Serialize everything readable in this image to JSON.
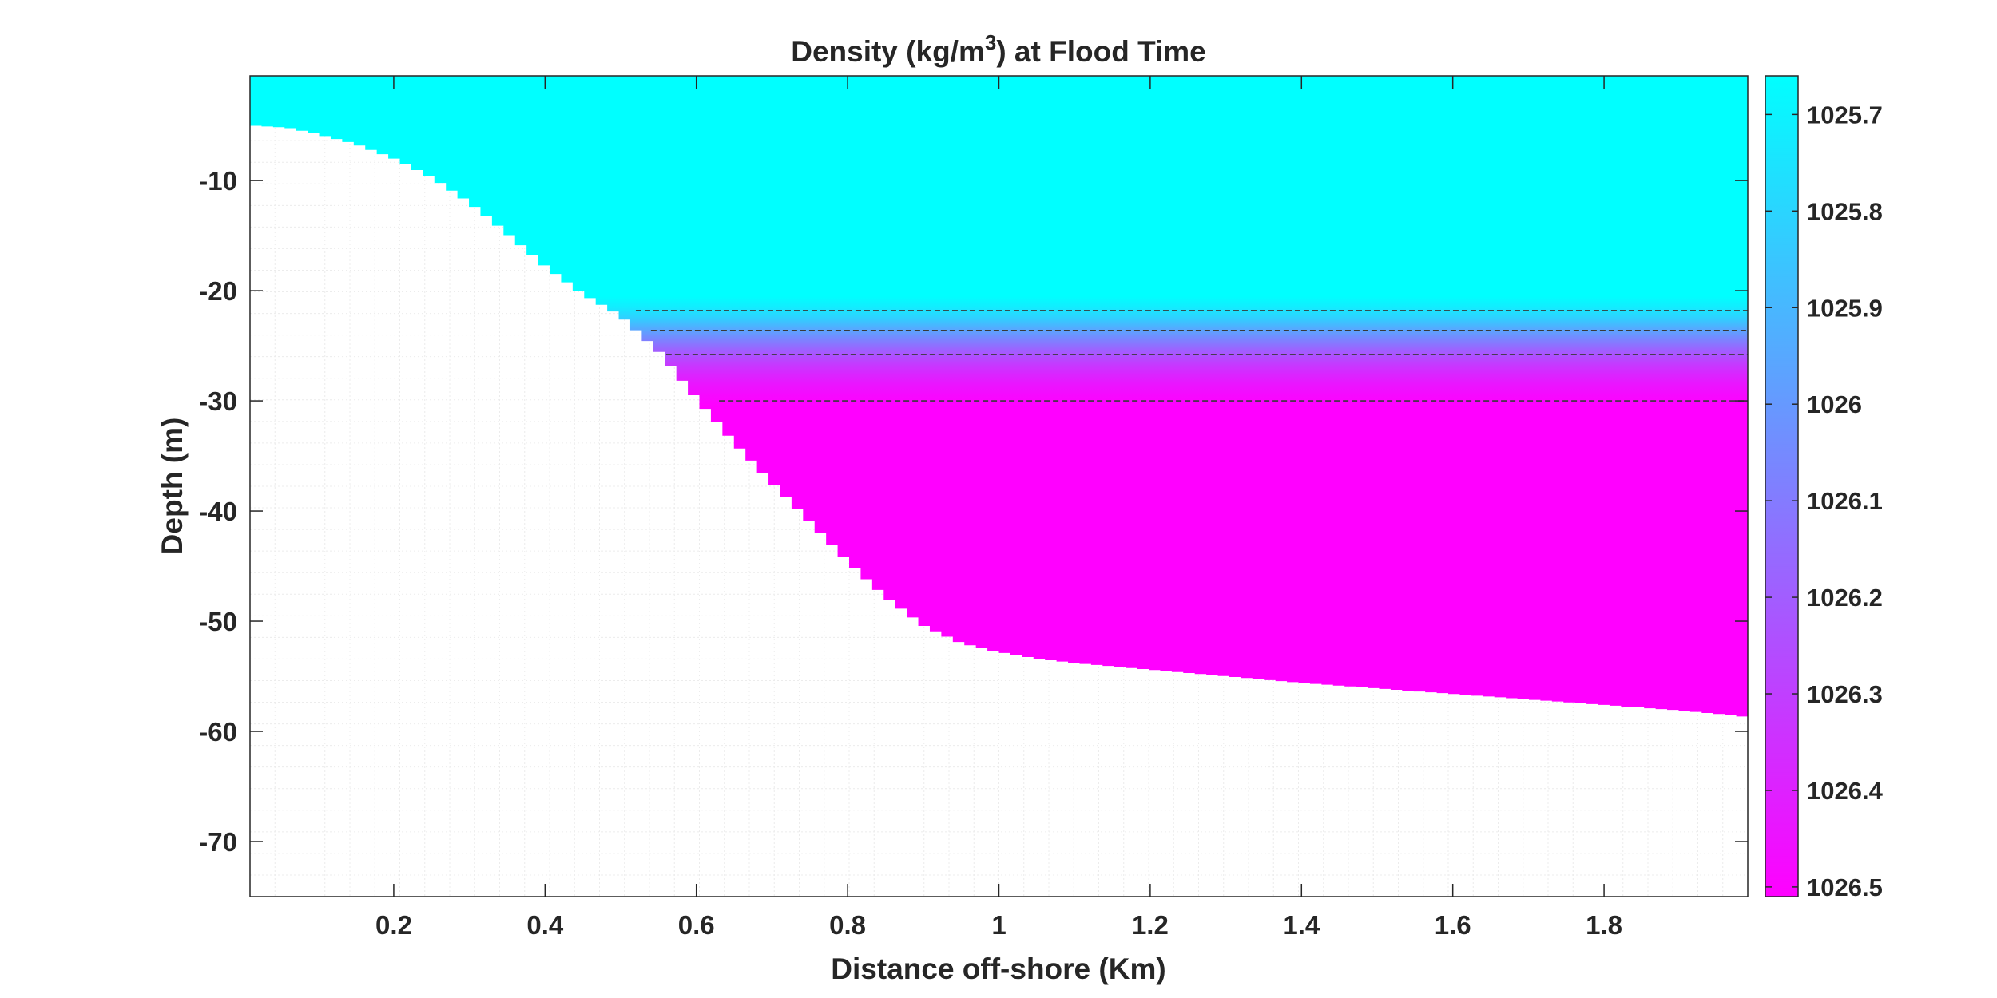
{
  "chart_data": {
    "type": "heatmap",
    "title_main": "Density (kg/m",
    "title_sup": "3",
    "title_tail": ") at Flood Time",
    "xlabel": "Distance off-shore (Km)",
    "ylabel": "Depth (m)",
    "xlim": [
      0.01,
      1.99
    ],
    "ylim": [
      -75,
      -0.5
    ],
    "xticks": [
      0.2,
      0.4,
      0.6,
      0.8,
      1,
      1.2,
      1.4,
      1.6,
      1.8
    ],
    "xtick_labels": [
      "0.2",
      "0.4",
      "0.6",
      "0.8",
      "1",
      "1.2",
      "1.4",
      "1.6",
      "1.8"
    ],
    "yticks": [
      -10,
      -20,
      -30,
      -40,
      -50,
      -60,
      -70
    ],
    "ytick_labels": [
      "-10",
      "-20",
      "-30",
      "-40",
      "-50",
      "-60",
      "-70"
    ],
    "grid": "on",
    "colormap": {
      "low_color": "#00FFFF",
      "high_color": "#FF00FF",
      "direction": "reversed",
      "clim": [
        1025.66,
        1026.51
      ],
      "ticks": [
        1025.7,
        1025.8,
        1025.9,
        1026,
        1026.1,
        1026.2,
        1026.3,
        1026.4,
        1026.5
      ],
      "tick_labels": [
        "1025.7",
        "1025.8",
        "1025.9",
        "1026",
        "1026.1",
        "1026.2",
        "1026.3",
        "1026.4",
        "1026.5"
      ]
    },
    "density_profile": {
      "depth": [
        0,
        -20.5,
        -21.5,
        -22.5,
        -23.5,
        -24.5,
        -25.5,
        -26.5,
        -27.5,
        -28.5,
        -29.5,
        -30.5,
        -80
      ],
      "density": [
        1025.66,
        1025.66,
        1025.72,
        1025.82,
        1025.95,
        1026.08,
        1026.2,
        1026.3,
        1026.38,
        1026.44,
        1026.48,
        1026.51,
        1026.51
      ]
    },
    "contour_depths": [
      -21.8,
      -23.6,
      -25.8,
      -30.0
    ],
    "contour_start_x": [
      0.52,
      0.54,
      0.56,
      0.63
    ],
    "bathymetry": {
      "x": [
        0.01,
        0.06,
        0.1,
        0.15,
        0.2,
        0.25,
        0.3,
        0.35,
        0.4,
        0.45,
        0.5,
        0.55,
        0.6,
        0.65,
        0.7,
        0.75,
        0.8,
        0.85,
        0.9,
        0.95,
        1.0,
        1.05,
        1.1,
        1.2,
        1.3,
        1.4,
        1.5,
        1.6,
        1.7,
        1.8,
        1.9,
        1.98,
        1.99
      ],
      "depth": [
        -5.0,
        -5.2,
        -5.8,
        -6.7,
        -8.0,
        -9.7,
        -12.0,
        -14.8,
        -17.8,
        -20.3,
        -22.3,
        -25.5,
        -29.8,
        -33.8,
        -37.4,
        -41.0,
        -44.6,
        -47.8,
        -50.4,
        -52.0,
        -52.8,
        -53.4,
        -53.8,
        -54.4,
        -55.0,
        -55.6,
        -56.1,
        -56.6,
        -57.1,
        -57.6,
        -58.1,
        -58.6,
        -58.8
      ]
    }
  }
}
